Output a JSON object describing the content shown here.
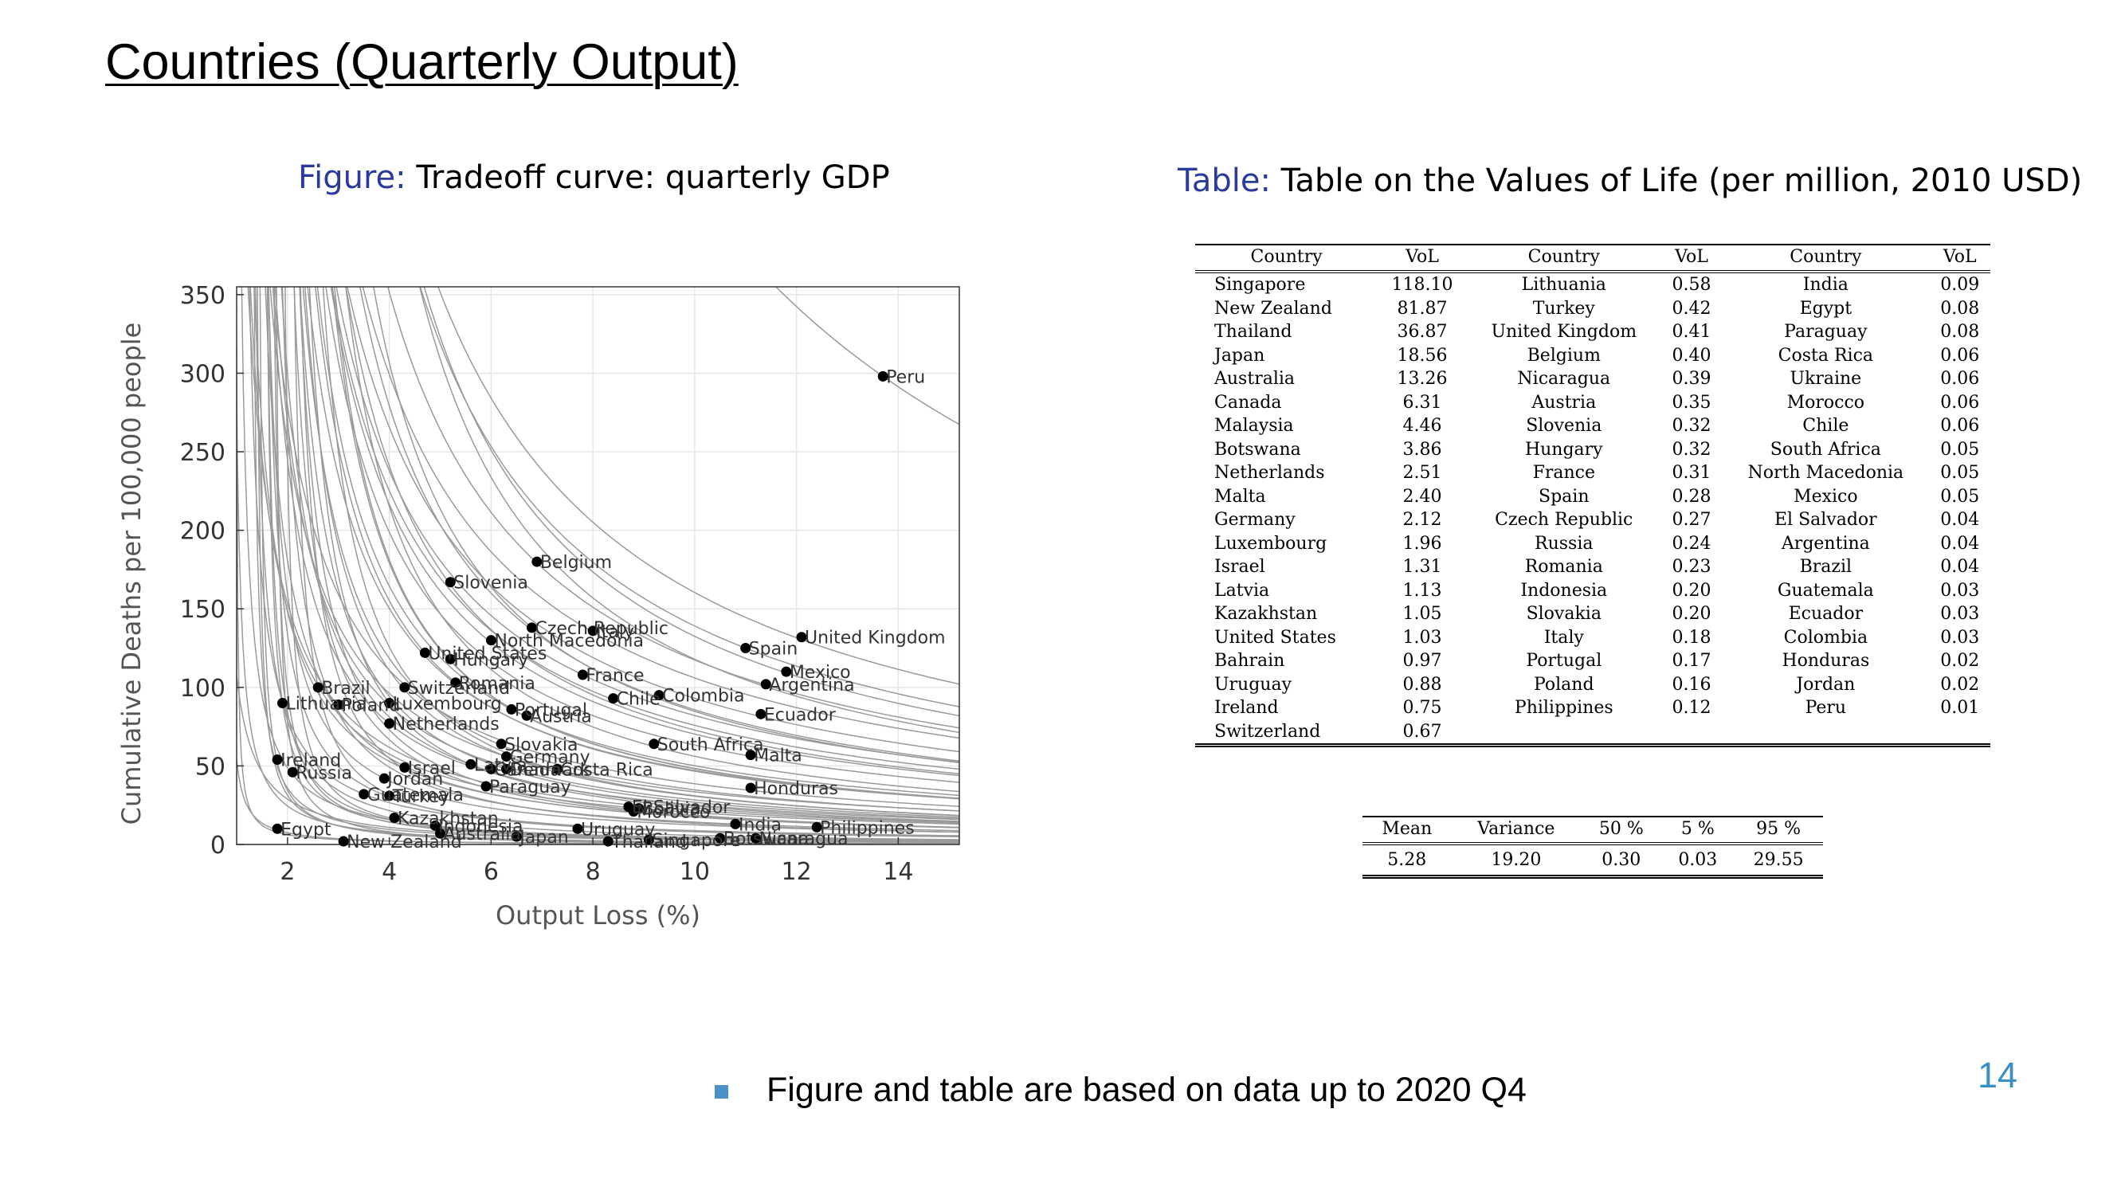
{
  "slide": {
    "title": "Countries (Quarterly Output)",
    "page_number": "14",
    "bullet": "Figure and table are based on data up to 2020 Q4"
  },
  "figure_caption": {
    "prefix": "Figure:",
    "text": "Tradeoff curve: quarterly GDP"
  },
  "table_caption": {
    "prefix": "Table:",
    "text": "Table on the Values of Life (per million, 2010 USD)"
  },
  "chart_data": {
    "type": "scatter",
    "xlabel": "Output Loss (%)",
    "ylabel": "Cumulative Deaths per 100,000 people",
    "xlim": [
      1.0,
      15.2
    ],
    "ylim": [
      0,
      355
    ],
    "xticks": [
      2,
      4,
      6,
      8,
      10,
      12,
      14
    ],
    "yticks": [
      0,
      50,
      100,
      150,
      200,
      250,
      300,
      350
    ],
    "grid": true,
    "curves": "grey tradeoff curve through each country point",
    "points": [
      {
        "label": "Peru",
        "x": 13.7,
        "y": 298
      },
      {
        "label": "Belgium",
        "x": 6.9,
        "y": 180
      },
      {
        "label": "Slovenia",
        "x": 5.2,
        "y": 167
      },
      {
        "label": "Czech Republic",
        "x": 6.8,
        "y": 138
      },
      {
        "label": "Italy",
        "x": 8.0,
        "y": 136
      },
      {
        "label": "North Macedonia",
        "x": 6.0,
        "y": 130
      },
      {
        "label": "United States",
        "x": 4.7,
        "y": 122
      },
      {
        "label": "Hungary",
        "x": 5.2,
        "y": 118
      },
      {
        "label": "United Kingdom",
        "x": 12.1,
        "y": 132
      },
      {
        "label": "Spain",
        "x": 11.0,
        "y": 125
      },
      {
        "label": "Mexico",
        "x": 11.8,
        "y": 110
      },
      {
        "label": "Argentina",
        "x": 11.4,
        "y": 102
      },
      {
        "label": "France",
        "x": 7.8,
        "y": 108
      },
      {
        "label": "Romania",
        "x": 5.3,
        "y": 103
      },
      {
        "label": "Switzerland",
        "x": 4.3,
        "y": 100
      },
      {
        "label": "Brazil",
        "x": 2.6,
        "y": 100
      },
      {
        "label": "Chile",
        "x": 8.4,
        "y": 93
      },
      {
        "label": "Colombia",
        "x": 9.3,
        "y": 95
      },
      {
        "label": "Lithuania",
        "x": 1.9,
        "y": 90
      },
      {
        "label": "Poland",
        "x": 3.0,
        "y": 89
      },
      {
        "label": "Luxembourg",
        "x": 4.0,
        "y": 90
      },
      {
        "label": "Portugal",
        "x": 6.4,
        "y": 86
      },
      {
        "label": "Austria",
        "x": 6.7,
        "y": 82
      },
      {
        "label": "Ecuador",
        "x": 11.3,
        "y": 83
      },
      {
        "label": "Netherlands",
        "x": 4.0,
        "y": 77
      },
      {
        "label": "Slovakia",
        "x": 6.2,
        "y": 64
      },
      {
        "label": "South Africa",
        "x": 9.2,
        "y": 64
      },
      {
        "label": "Germany",
        "x": 6.3,
        "y": 56
      },
      {
        "label": "Malta",
        "x": 11.1,
        "y": 57
      },
      {
        "label": "Ireland",
        "x": 1.8,
        "y": 54
      },
      {
        "label": "Latvia",
        "x": 5.6,
        "y": 51
      },
      {
        "label": "Israel",
        "x": 4.3,
        "y": 49
      },
      {
        "label": "Canada",
        "x": 6.0,
        "y": 48
      },
      {
        "label": "Denmark",
        "x": 6.3,
        "y": 48
      },
      {
        "label": "Costa Rica",
        "x": 7.3,
        "y": 48
      },
      {
        "label": "Russia",
        "x": 2.1,
        "y": 46
      },
      {
        "label": "Jordan",
        "x": 3.9,
        "y": 42
      },
      {
        "label": "Paraguay",
        "x": 5.9,
        "y": 37
      },
      {
        "label": "Honduras",
        "x": 11.1,
        "y": 36
      },
      {
        "label": "Guatemala",
        "x": 3.5,
        "y": 32
      },
      {
        "label": "Turkey",
        "x": 4.0,
        "y": 31
      },
      {
        "label": "El Salvador",
        "x": 8.7,
        "y": 24
      },
      {
        "label": "Bolivia",
        "x": 8.9,
        "y": 23
      },
      {
        "label": "Morocco",
        "x": 8.8,
        "y": 21
      },
      {
        "label": "Kazakhstan",
        "x": 4.1,
        "y": 17
      },
      {
        "label": "Indonesia",
        "x": 4.9,
        "y": 12
      },
      {
        "label": "Egypt",
        "x": 1.8,
        "y": 10
      },
      {
        "label": "Uruguay",
        "x": 7.7,
        "y": 10
      },
      {
        "label": "India",
        "x": 10.8,
        "y": 13
      },
      {
        "label": "Philippines",
        "x": 12.4,
        "y": 11
      },
      {
        "label": "Australia",
        "x": 5.0,
        "y": 7
      },
      {
        "label": "Japan",
        "x": 6.5,
        "y": 5
      },
      {
        "label": "Botswana",
        "x": 10.5,
        "y": 4
      },
      {
        "label": "Nicaragua",
        "x": 11.2,
        "y": 4
      },
      {
        "label": "New Zealand",
        "x": 3.1,
        "y": 2
      },
      {
        "label": "Thailand",
        "x": 8.3,
        "y": 2
      },
      {
        "label": "Singapore",
        "x": 9.1,
        "y": 3
      }
    ]
  },
  "vol_table": {
    "headers": [
      "Country",
      "VoL",
      "Country",
      "VoL",
      "Country",
      "VoL"
    ],
    "rows": [
      [
        "Singapore",
        "118.10",
        "Lithuania",
        "0.58",
        "India",
        "0.09"
      ],
      [
        "New Zealand",
        "81.87",
        "Turkey",
        "0.42",
        "Egypt",
        "0.08"
      ],
      [
        "Thailand",
        "36.87",
        "United Kingdom",
        "0.41",
        "Paraguay",
        "0.08"
      ],
      [
        "Japan",
        "18.56",
        "Belgium",
        "0.40",
        "Costa Rica",
        "0.06"
      ],
      [
        "Australia",
        "13.26",
        "Nicaragua",
        "0.39",
        "Ukraine",
        "0.06"
      ],
      [
        "Canada",
        "6.31",
        "Austria",
        "0.35",
        "Morocco",
        "0.06"
      ],
      [
        "Malaysia",
        "4.46",
        "Slovenia",
        "0.32",
        "Chile",
        "0.06"
      ],
      [
        "Botswana",
        "3.86",
        "Hungary",
        "0.32",
        "South Africa",
        "0.05"
      ],
      [
        "Netherlands",
        "2.51",
        "France",
        "0.31",
        "North Macedonia",
        "0.05"
      ],
      [
        "Malta",
        "2.40",
        "Spain",
        "0.28",
        "Mexico",
        "0.05"
      ],
      [
        "Germany",
        "2.12",
        "Czech Republic",
        "0.27",
        "El Salvador",
        "0.04"
      ],
      [
        "Luxembourg",
        "1.96",
        "Russia",
        "0.24",
        "Argentina",
        "0.04"
      ],
      [
        "Israel",
        "1.31",
        "Romania",
        "0.23",
        "Brazil",
        "0.04"
      ],
      [
        "Latvia",
        "1.13",
        "Indonesia",
        "0.20",
        "Guatemala",
        "0.03"
      ],
      [
        "Kazakhstan",
        "1.05",
        "Slovakia",
        "0.20",
        "Ecuador",
        "0.03"
      ],
      [
        "United States",
        "1.03",
        "Italy",
        "0.18",
        "Colombia",
        "0.03"
      ],
      [
        "Bahrain",
        "0.97",
        "Portugal",
        "0.17",
        "Honduras",
        "0.02"
      ],
      [
        "Uruguay",
        "0.88",
        "Poland",
        "0.16",
        "Jordan",
        "0.02"
      ],
      [
        "Ireland",
        "0.75",
        "Philippines",
        "0.12",
        "Peru",
        "0.01"
      ],
      [
        "Switzerland",
        "0.67",
        "",
        "",
        "",
        ""
      ]
    ]
  },
  "stats_table": {
    "headers": [
      "Mean",
      "Variance",
      "50 %",
      "5 %",
      "95 %"
    ],
    "values": [
      "5.28",
      "19.20",
      "0.30",
      "0.03",
      "29.55"
    ]
  },
  "colors": {
    "caption_prefix": "#2b3a9c",
    "bullet": "#4a90c9",
    "page_number": "#3b8fc5",
    "curves": "#9a9a9a"
  }
}
